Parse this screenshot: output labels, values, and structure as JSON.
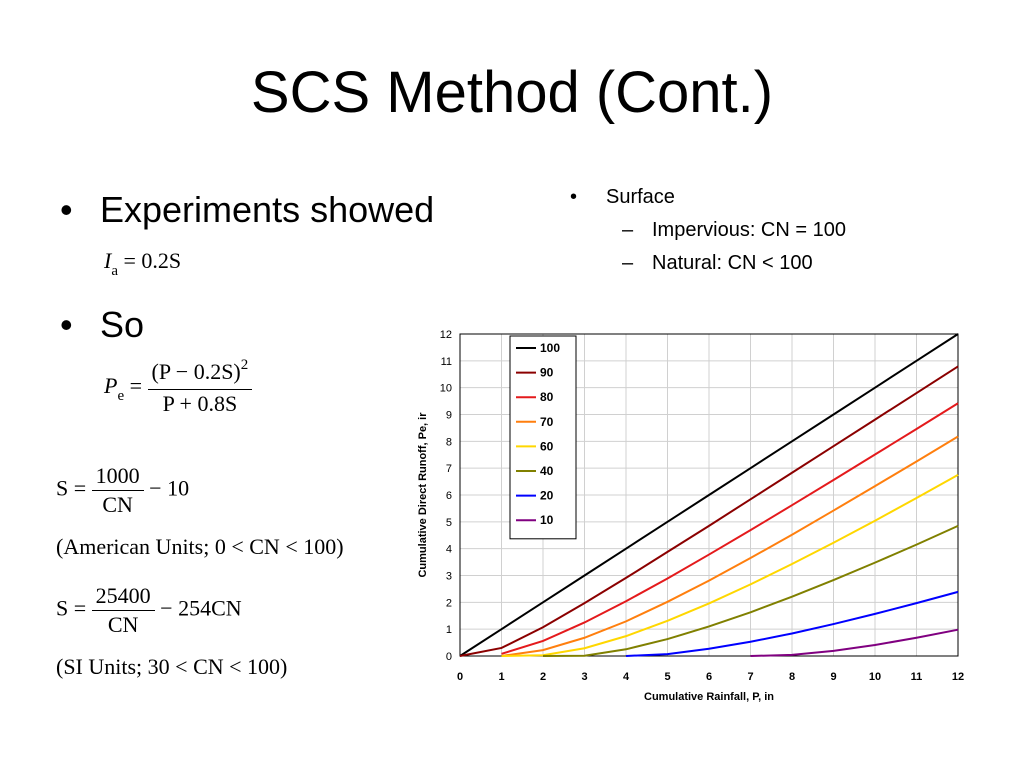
{
  "slide": {
    "title": "SCS Method (Cont.)",
    "bullets": [
      {
        "marker": "•",
        "text": "Experiments showed"
      },
      {
        "marker": "•",
        "text": "So"
      }
    ],
    "eq_ia": {
      "lhs": "I",
      "lhs_sub": "a",
      "rhs": "= 0.2S"
    },
    "eq_pe": {
      "lhs": "P",
      "lhs_sub": "e",
      "eq": "=",
      "num": "(P − 0.2S)",
      "num_sup": "2",
      "den": "P + 0.8S"
    },
    "eq_s_us": {
      "lhs": "S =",
      "num": "1000",
      "den": "CN",
      "tail": "− 10",
      "note": "(American  Units; 0 < CN < 100)"
    },
    "eq_s_si": {
      "lhs": "S =",
      "num": "25400",
      "den": "CN",
      "tail": "− 254CN",
      "note": "(SI Units; 30 < CN < 100)"
    },
    "right_list": {
      "marker1": "•",
      "item": "Surface",
      "marker2": "–",
      "subitems": [
        "Impervious:  CN = 100",
        "Natural:  CN < 100"
      ]
    }
  },
  "chart_data": {
    "type": "line",
    "title": "",
    "xlabel": "Cumulative Rainfall, P, in",
    "ylabel": "Cumulative Direct Runoff, Pe, ir",
    "xlim": [
      0,
      12
    ],
    "ylim": [
      0,
      12
    ],
    "x_ticks": [
      "0",
      "1",
      "2",
      "3",
      "4",
      "5",
      "6",
      "7",
      "8",
      "9",
      "10",
      "11",
      "12"
    ],
    "y_ticks": [
      "0",
      "1",
      "2",
      "3",
      "4",
      "5",
      "6",
      "7",
      "8",
      "9",
      "10",
      "11",
      "12"
    ],
    "grid": true,
    "legend": "top-left inside plot",
    "series": [
      {
        "name": "100",
        "color": "#000000",
        "x": [
          0,
          1,
          2,
          3,
          4,
          5,
          6,
          7,
          8,
          9,
          10,
          11,
          12
        ],
        "y": [
          0,
          1,
          2,
          3,
          4,
          5,
          6,
          7,
          8,
          9,
          10,
          11,
          12
        ]
      },
      {
        "name": "90",
        "color": "#8b0000",
        "x": [
          0,
          1,
          2,
          3,
          4,
          5,
          6,
          7,
          8,
          9,
          10,
          11,
          12
        ],
        "y": [
          0,
          0.3,
          1.07,
          1.97,
          2.91,
          3.88,
          4.85,
          5.84,
          6.83,
          7.82,
          8.81,
          9.8,
          10.79
        ]
      },
      {
        "name": "80",
        "color": "#e41a1c",
        "x": [
          1,
          2,
          3,
          4,
          5,
          6,
          7,
          8,
          9,
          10,
          11,
          12
        ],
        "y": [
          0.08,
          0.56,
          1.25,
          2.04,
          2.89,
          3.78,
          4.69,
          5.62,
          6.56,
          7.51,
          8.46,
          9.42
        ]
      },
      {
        "name": "70",
        "color": "#ff7f0e",
        "x": [
          1,
          2,
          3,
          4,
          5,
          6,
          7,
          8,
          9,
          10,
          11,
          12
        ],
        "y": [
          0,
          0.22,
          0.68,
          1.29,
          2.02,
          2.81,
          3.65,
          4.52,
          5.42,
          6.33,
          7.25,
          8.18
        ]
      },
      {
        "name": "60",
        "color": "#ffd700",
        "x": [
          1,
          2,
          3,
          4,
          5,
          6,
          7,
          8,
          9,
          10,
          11,
          12
        ],
        "y": [
          0,
          0.03,
          0.29,
          0.74,
          1.31,
          1.96,
          2.67,
          3.43,
          4.22,
          5.04,
          5.89,
          6.75
        ]
      },
      {
        "name": "40",
        "color": "#808000",
        "x": [
          2,
          3,
          4,
          5,
          6,
          7,
          8,
          9,
          10,
          11,
          12
        ],
        "y": [
          0,
          0.01,
          0.25,
          0.63,
          1.1,
          1.63,
          2.21,
          2.83,
          3.48,
          4.15,
          4.85
        ]
      },
      {
        "name": "20",
        "color": "#0000ff",
        "x": [
          4,
          5,
          6,
          7,
          8,
          9,
          10,
          11,
          12
        ],
        "y": [
          0,
          0.07,
          0.27,
          0.53,
          0.84,
          1.19,
          1.57,
          1.97,
          2.39
        ]
      },
      {
        "name": "10",
        "color": "#800080",
        "x": [
          7,
          8,
          9,
          10,
          11,
          12
        ],
        "y": [
          0,
          0.04,
          0.19,
          0.41,
          0.68,
          0.98
        ]
      }
    ]
  }
}
